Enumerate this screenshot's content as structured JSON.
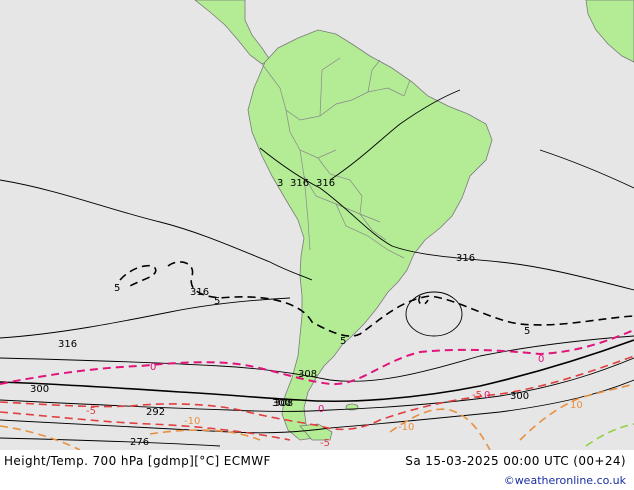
{
  "header": {
    "title": "Height/Temp. 700 hPa [gdmp][°C] ECMWF",
    "datetime": "Sa 15-03-2025 00:00 UTC (00+24)",
    "credit": "©weatheronline.co.uk"
  },
  "colors": {
    "ocean": "#e6e6e6",
    "land": "#b4ec96",
    "border": "#808080",
    "height_contour": "#000000",
    "temp_0": "#e0147a",
    "temp_minus5": "#e04040",
    "temp_minus10": "#e89040",
    "temp_minus15": "#90d040"
  },
  "height_labels": [
    "316",
    "316",
    "316",
    "316",
    "316",
    "308",
    "308",
    "300",
    "300",
    "300",
    "292",
    "276",
    "3"
  ],
  "temp_labels": {
    "zero": [
      "0",
      "0",
      "0",
      "0"
    ],
    "minus5": [
      "-5",
      "-5",
      "5",
      "5",
      "5",
      "-5",
      "5"
    ],
    "minus10": [
      "-10",
      "-10",
      "10"
    ]
  }
}
